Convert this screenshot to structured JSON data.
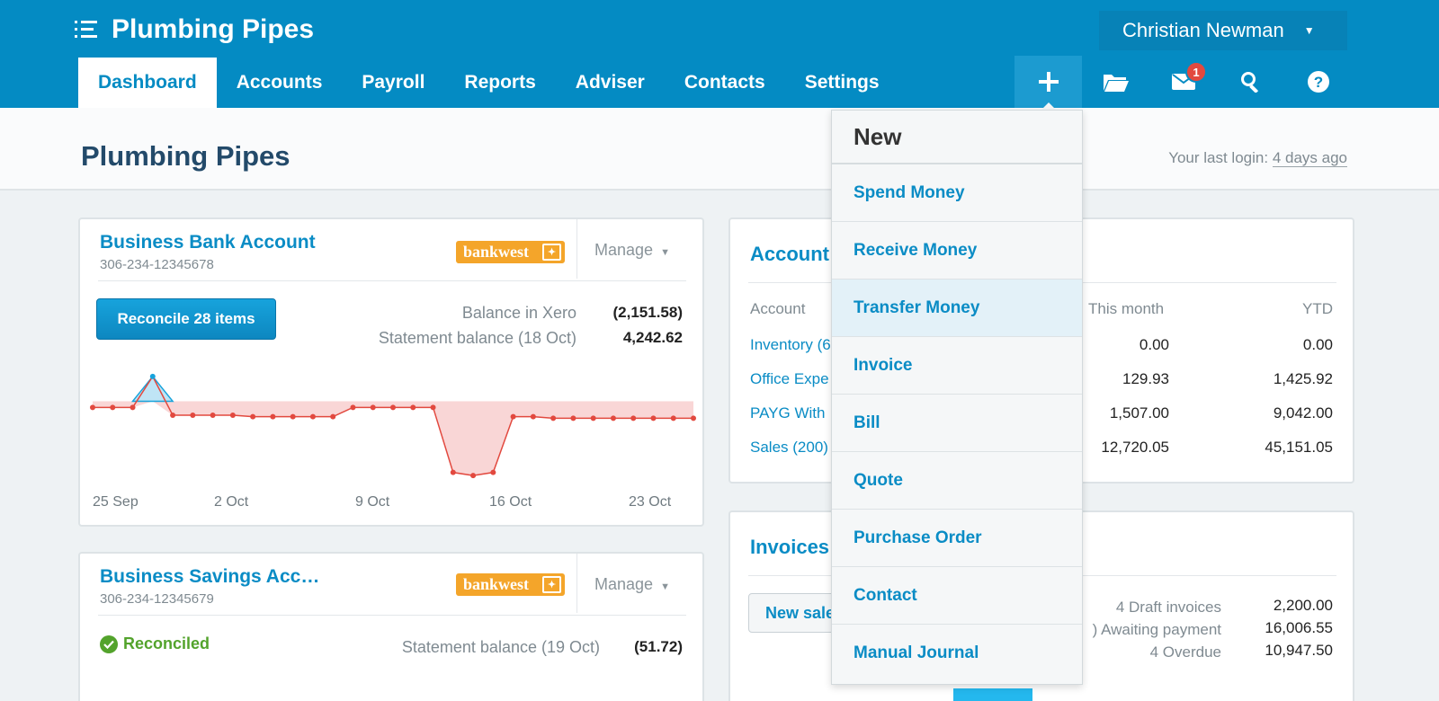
{
  "header": {
    "org_name": "Plumbing Pipes",
    "user_name": "Christian Newman"
  },
  "nav": {
    "items": [
      {
        "label": "Dashboard",
        "active": true
      },
      {
        "label": "Accounts"
      },
      {
        "label": "Payroll"
      },
      {
        "label": "Reports"
      },
      {
        "label": "Adviser"
      },
      {
        "label": "Contacts"
      },
      {
        "label": "Settings"
      }
    ]
  },
  "toolbar": {
    "icons": [
      "plus-icon",
      "folder-icon",
      "mail-icon",
      "search-icon",
      "help-icon"
    ],
    "mail_badge": "1"
  },
  "page": {
    "title": "Plumbing Pipes",
    "last_login_label": "Your last login:",
    "last_login_value": "4 days ago"
  },
  "bank_card": {
    "title": "Business Bank Account",
    "account_number": "306-234-12345678",
    "logo_text": "bankwest",
    "manage_label": "Manage",
    "reconcile_label": "Reconcile 28 items",
    "balance_xero_label": "Balance in Xero",
    "balance_xero_value": "(2,151.58)",
    "statement_label": "Statement balance (18 Oct)",
    "statement_value": "4,242.62"
  },
  "chart_data": {
    "type": "line",
    "x_ticks": [
      "25 Sep",
      "2 Oct",
      "9 Oct",
      "16 Oct",
      "23 Oct"
    ],
    "values": [
      0,
      0,
      0,
      1.0,
      -0.25,
      -0.25,
      -0.25,
      -0.25,
      -0.3,
      -0.3,
      -0.3,
      -0.3,
      -0.3,
      0,
      0,
      0,
      0,
      0,
      -2.1,
      -2.2,
      -2.1,
      -0.3,
      -0.3,
      -0.35,
      -0.35,
      -0.35,
      -0.35,
      -0.35,
      -0.35,
      -0.35,
      -0.35
    ],
    "baseline": 0.2,
    "colors": {
      "positive": "#17a3dc",
      "negative": "#e2493f"
    }
  },
  "savings_card": {
    "title": "Business Savings Acc…",
    "account_number": "306-234-12345679",
    "logo_text": "bankwest",
    "manage_label": "Manage",
    "status": "Reconciled",
    "statement_label": "Statement balance (19 Oct)",
    "statement_value": "(51.72)"
  },
  "accounts_card": {
    "title": "Account",
    "col_account": "Account",
    "col_month": "This month",
    "col_ytd": "YTD",
    "rows": [
      {
        "name": "Inventory (6",
        "month": "0.00",
        "ytd": "0.00"
      },
      {
        "name": "Office Expe",
        "month": "129.93",
        "ytd": "1,425.92"
      },
      {
        "name": "PAYG With",
        "month": "1,507.00",
        "ytd": "9,042.00"
      },
      {
        "name": "Sales (200)",
        "month": "12,720.05",
        "ytd": "45,151.05"
      }
    ]
  },
  "invoices_card": {
    "title": "Invoices",
    "new_sales_label": "New sale",
    "rows": [
      {
        "label": "4 Draft invoices",
        "value": "2,200.00"
      },
      {
        "label": ") Awaiting payment",
        "value": "16,006.55"
      },
      {
        "label": "4 Overdue",
        "value": "10,947.50"
      }
    ]
  },
  "new_menu": {
    "heading": "New",
    "items": [
      "Spend Money",
      "Receive Money",
      "Transfer Money",
      "Invoice",
      "Bill",
      "Quote",
      "Purchase Order",
      "Contact",
      "Manual Journal"
    ],
    "highlighted": "Transfer Money"
  }
}
